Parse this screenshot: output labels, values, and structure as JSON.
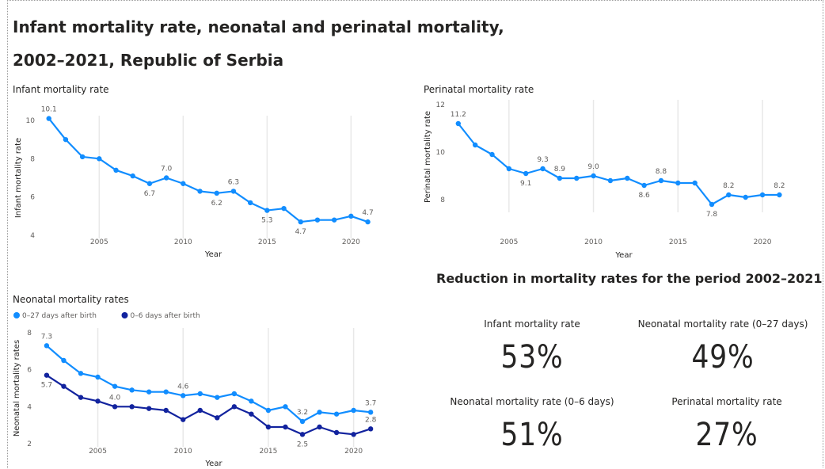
{
  "title_line1": "Infant mortality rate, neonatal and perinatal mortality,",
  "title_line2": "2002–2021, Republic of Serbia",
  "summary": {
    "title": "Reduction in mortality rates for the period 2002–2021",
    "kpis": [
      {
        "label": "Infant mortality rate",
        "value": "53%"
      },
      {
        "label": "Neonatal mortality rate (0–27 days)",
        "value": "49%"
      },
      {
        "label": "Neonatal mortality rate (0–6 days)",
        "value": "51%"
      },
      {
        "label": "Perinatal mortality rate",
        "value": "27%"
      }
    ]
  },
  "chart_data": [
    {
      "type": "line",
      "title": "Infant mortality rate",
      "xlabel": "Year",
      "ylabel": "Infant mortality rate",
      "ylim": [
        4,
        10
      ],
      "yticks": [
        4,
        6,
        8,
        10
      ],
      "xticks": [
        2005,
        2010,
        2015,
        2020
      ],
      "xlim": [
        2001.4,
        2022.2
      ],
      "x": [
        2002,
        2003,
        2004,
        2005,
        2006,
        2007,
        2008,
        2009,
        2010,
        2011,
        2012,
        2013,
        2014,
        2015,
        2016,
        2017,
        2018,
        2019,
        2020,
        2021
      ],
      "series": [
        {
          "color": "#118dff",
          "values": [
            10.1,
            9.0,
            8.1,
            8.0,
            7.4,
            7.1,
            6.7,
            7.0,
            6.7,
            6.3,
            6.2,
            6.3,
            5.7,
            5.3,
            5.4,
            4.7,
            4.8,
            4.8,
            5.0,
            4.7
          ],
          "labels": {
            "2002": "10.1",
            "2008": "6.7",
            "2009": "7.0",
            "2012": "6.2",
            "2013": "6.3",
            "2015": "5.3",
            "2017": "4.7",
            "2021": "4.7"
          }
        }
      ]
    },
    {
      "type": "line",
      "title": "Perinatal mortality rate",
      "xlabel": "Year",
      "ylabel": "Perinatal mortality rate",
      "ylim": [
        7.6,
        12
      ],
      "yticks": [
        8,
        10,
        12
      ],
      "xticks": [
        2005,
        2010,
        2015,
        2020
      ],
      "xlim": [
        2001.4,
        2022.2
      ],
      "x": [
        2002,
        2003,
        2004,
        2005,
        2006,
        2007,
        2008,
        2009,
        2010,
        2011,
        2012,
        2013,
        2014,
        2015,
        2016,
        2017,
        2018,
        2019,
        2020,
        2021
      ],
      "series": [
        {
          "color": "#118dff",
          "values": [
            11.2,
            10.3,
            9.9,
            9.3,
            9.1,
            9.3,
            8.9,
            8.9,
            9.0,
            8.8,
            8.9,
            8.6,
            8.8,
            8.7,
            8.7,
            7.8,
            8.2,
            8.1,
            8.2,
            8.2
          ],
          "labels": {
            "2002": "11.2",
            "2006": "9.1",
            "2007": "9.3",
            "2008": "8.9",
            "2010": "9.0",
            "2013": "8.6",
            "2014": "8.8",
            "2017": "7.8",
            "2018": "8.2",
            "2021": "8.2"
          }
        }
      ]
    },
    {
      "type": "line",
      "title": "Neonatal mortality rates",
      "xlabel": "Year",
      "ylabel": "Neonatal mortality rates",
      "ylim": [
        2,
        8
      ],
      "yticks": [
        2,
        4,
        6,
        8
      ],
      "xticks": [
        2005,
        2010,
        2015,
        2020
      ],
      "xlim": [
        2001.4,
        2022.2
      ],
      "x": [
        2002,
        2003,
        2004,
        2005,
        2006,
        2007,
        2008,
        2009,
        2010,
        2011,
        2012,
        2013,
        2014,
        2015,
        2016,
        2017,
        2018,
        2019,
        2020,
        2021
      ],
      "series": [
        {
          "name": "0–27 days after birth",
          "color": "#118dff",
          "values": [
            7.3,
            6.5,
            5.8,
            5.6,
            5.1,
            4.9,
            4.8,
            4.8,
            4.6,
            4.7,
            4.5,
            4.7,
            4.3,
            3.8,
            4.0,
            3.2,
            3.7,
            3.6,
            3.8,
            3.7
          ],
          "labels": {
            "2002": "7.3",
            "2010": "4.6",
            "2017": "3.2",
            "2021": "3.7"
          }
        },
        {
          "name": "0–6 days after birth",
          "color": "#12239e",
          "values": [
            5.7,
            5.1,
            4.5,
            4.3,
            4.0,
            4.0,
            3.9,
            3.8,
            3.3,
            3.8,
            3.4,
            4.0,
            3.6,
            2.9,
            2.9,
            2.5,
            2.9,
            2.6,
            2.5,
            2.8
          ],
          "labels": {
            "2002": "5.7",
            "2006": "4.0",
            "2017": "2.5",
            "2021": "2.8"
          }
        }
      ]
    }
  ]
}
